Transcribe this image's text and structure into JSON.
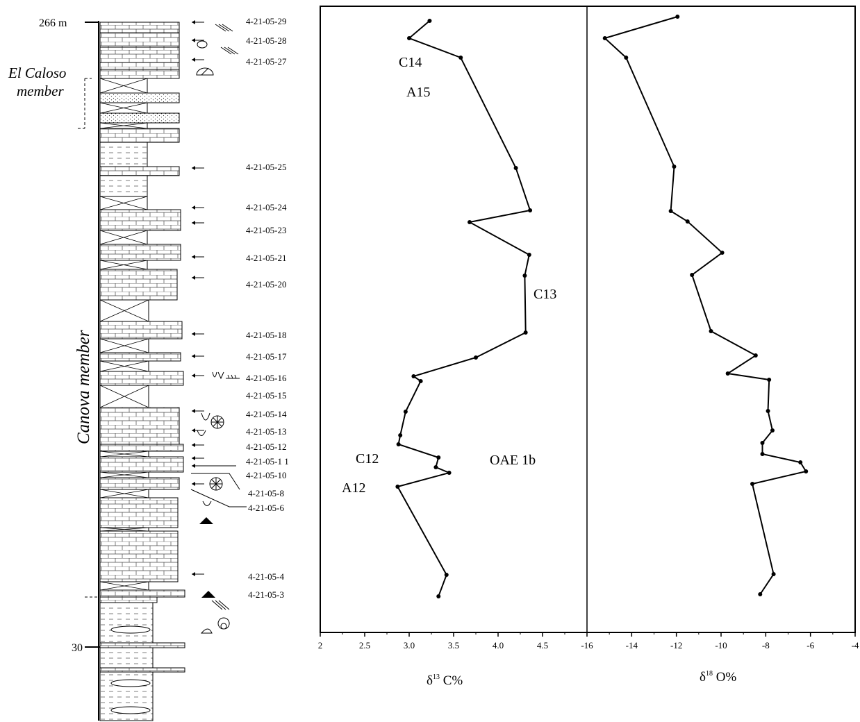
{
  "log": {
    "top_label": "266 m",
    "bottom_label": "30",
    "member_upper_line1": "El Caloso",
    "member_upper_line2": "member",
    "member_lower": "Canova member",
    "samples": [
      {
        "label": "4-21-05-29"
      },
      {
        "label": "4-21-05-28"
      },
      {
        "label": "4-21-05-27"
      },
      {
        "label": "4-21-05-25"
      },
      {
        "label": "4-21-05-24"
      },
      {
        "label": "4-21-05-23"
      },
      {
        "label": "4-21-05-21"
      },
      {
        "label": "4-21-05-20"
      },
      {
        "label": "4-21-05-18"
      },
      {
        "label": "4-21-05-17"
      },
      {
        "label": "4-21-05-16"
      },
      {
        "label": "4-21-05-15"
      },
      {
        "label": "4-21-05-14"
      },
      {
        "label": "4-21-05-13"
      },
      {
        "label": "4-21-05-12"
      },
      {
        "label": "4-21-05-1 1"
      },
      {
        "label": "4-21-05-10"
      },
      {
        "label": "4-21-05-8"
      },
      {
        "label": "4-21-05-6"
      },
      {
        "label": "4-21-05-4"
      },
      {
        "label": "4-21-05-3"
      }
    ]
  },
  "chart_data": [
    {
      "type": "line",
      "title": "",
      "xlabel_main": "δ",
      "xlabel_sup": "13",
      "xlabel_tail": " C%",
      "xlim": [
        2,
        5
      ],
      "xticks": [
        "2",
        "2.5",
        "3.0",
        "3.5",
        "4.0",
        "4.5"
      ],
      "series": [
        {
          "color": "#000000",
          "points": [
            {
              "x": 3.23,
              "y": 30
            },
            {
              "x": 3.0,
              "y": 55
            },
            {
              "x": 3.58,
              "y": 83
            },
            {
              "x": 4.2,
              "y": 242
            },
            {
              "x": 4.36,
              "y": 303
            },
            {
              "x": 3.68,
              "y": 320
            },
            {
              "x": 4.35,
              "y": 367
            },
            {
              "x": 4.3,
              "y": 397
            },
            {
              "x": 4.31,
              "y": 479
            },
            {
              "x": 3.75,
              "y": 515
            },
            {
              "x": 3.05,
              "y": 542
            },
            {
              "x": 3.13,
              "y": 549
            },
            {
              "x": 2.96,
              "y": 593
            },
            {
              "x": 2.9,
              "y": 627
            },
            {
              "x": 2.88,
              "y": 640
            },
            {
              "x": 3.33,
              "y": 659
            },
            {
              "x": 3.3,
              "y": 673
            },
            {
              "x": 3.45,
              "y": 681
            },
            {
              "x": 2.87,
              "y": 701
            },
            {
              "x": 3.42,
              "y": 828
            },
            {
              "x": 3.33,
              "y": 859
            }
          ]
        }
      ],
      "annotations": [
        "C14",
        "A15",
        "C13",
        "C12",
        "A12",
        "OAE 1b"
      ]
    },
    {
      "type": "line",
      "title": "",
      "xlabel_main": "δ",
      "xlabel_sup": "18",
      "xlabel_tail": " O%",
      "xlim": [
        -16,
        -4
      ],
      "xticks": [
        "-16",
        "-14",
        "-12",
        "-10",
        "-8",
        "-6",
        "-4"
      ],
      "series": [
        {
          "color": "#000000",
          "points": [
            {
              "x": -11.95,
              "y": 24
            },
            {
              "x": -15.2,
              "y": 55
            },
            {
              "x": -14.25,
              "y": 83
            },
            {
              "x": -12.1,
              "y": 240
            },
            {
              "x": -12.25,
              "y": 304
            },
            {
              "x": -11.5,
              "y": 319
            },
            {
              "x": -9.95,
              "y": 364
            },
            {
              "x": -11.3,
              "y": 396
            },
            {
              "x": -10.45,
              "y": 477
            },
            {
              "x": -8.45,
              "y": 512
            },
            {
              "x": -9.7,
              "y": 538
            },
            {
              "x": -7.85,
              "y": 547
            },
            {
              "x": -7.9,
              "y": 592
            },
            {
              "x": -7.7,
              "y": 620
            },
            {
              "x": -8.15,
              "y": 638
            },
            {
              "x": -8.15,
              "y": 654
            },
            {
              "x": -6.45,
              "y": 666
            },
            {
              "x": -6.2,
              "y": 679
            },
            {
              "x": -8.6,
              "y": 697
            },
            {
              "x": -7.65,
              "y": 827
            },
            {
              "x": -8.25,
              "y": 856
            }
          ]
        }
      ],
      "annotations": []
    }
  ]
}
